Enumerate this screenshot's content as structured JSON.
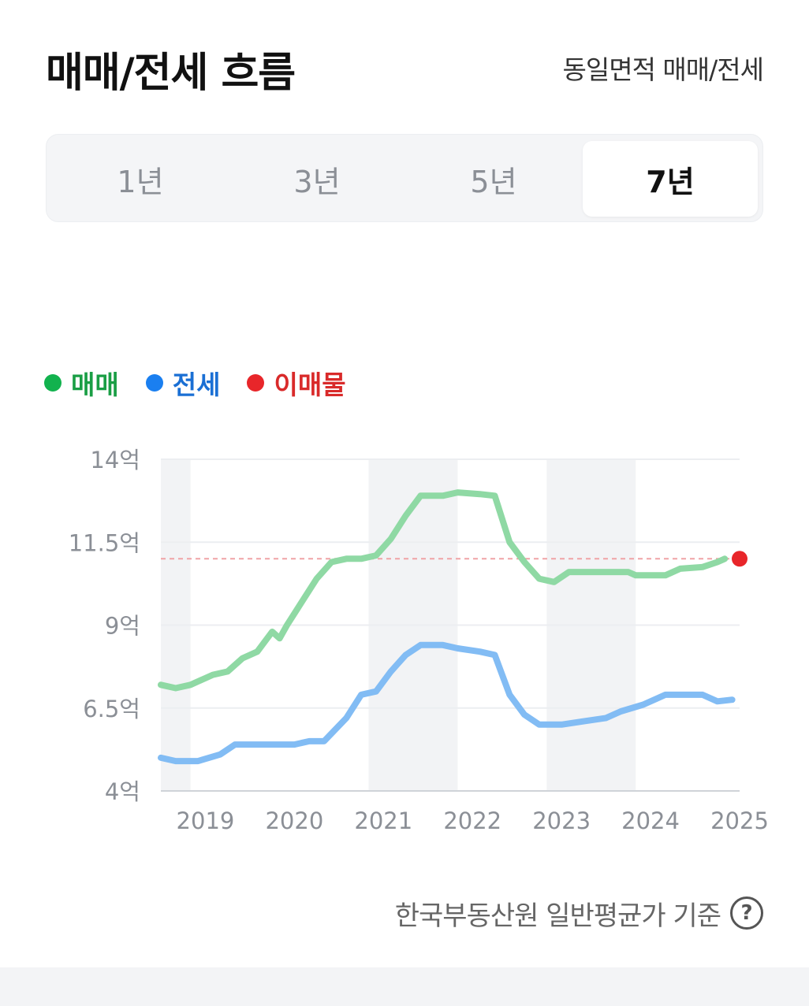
{
  "header": {
    "title": "매매/전세 흐름",
    "area_filter": "동일면적 매매/전세"
  },
  "tabs": [
    {
      "label": "1년",
      "active": false
    },
    {
      "label": "3년",
      "active": false
    },
    {
      "label": "5년",
      "active": false
    },
    {
      "label": "7년",
      "active": true
    }
  ],
  "legend": [
    {
      "label": "매매",
      "color": "#12b24e",
      "text_color": "#1a9e45"
    },
    {
      "label": "전세",
      "color": "#1a7ff0",
      "text_color": "#1a6fd4"
    },
    {
      "label": "이매물",
      "color": "#e8262a",
      "text_color": "#d92a2a"
    }
  ],
  "footer": {
    "source": "한국부동산원 일반평균가 기준",
    "help_icon": "question-circle-icon"
  },
  "chart_data": {
    "type": "line",
    "x_start": "2018-09",
    "x_end": "2025-03",
    "ylim": [
      4,
      14
    ],
    "y_ticks": [
      4,
      6.5,
      9,
      11.5,
      14
    ],
    "y_tick_labels": [
      "4억",
      "6.5억",
      "9억",
      "11.5억",
      "14억"
    ],
    "x_ticks": [
      "2019",
      "2020",
      "2021",
      "2022",
      "2023",
      "2024",
      "2025"
    ],
    "band_years": [
      2018,
      2021,
      2023
    ],
    "grid": true,
    "series": [
      {
        "name": "매매",
        "color": "#8fd9a4",
        "points": [
          [
            "2018-09",
            7.2
          ],
          [
            "2018-11",
            7.1
          ],
          [
            "2019-01",
            7.2
          ],
          [
            "2019-04",
            7.5
          ],
          [
            "2019-06",
            7.6
          ],
          [
            "2019-08",
            8.0
          ],
          [
            "2019-10",
            8.2
          ],
          [
            "2019-12",
            8.8
          ],
          [
            "2020-01",
            8.6
          ],
          [
            "2020-02",
            9.0
          ],
          [
            "2020-04",
            9.7
          ],
          [
            "2020-06",
            10.4
          ],
          [
            "2020-08",
            10.9
          ],
          [
            "2020-10",
            11.0
          ],
          [
            "2020-12",
            11.0
          ],
          [
            "2021-02",
            11.1
          ],
          [
            "2021-04",
            11.6
          ],
          [
            "2021-06",
            12.3
          ],
          [
            "2021-08",
            12.9
          ],
          [
            "2021-11",
            12.9
          ],
          [
            "2022-01",
            13.0
          ],
          [
            "2022-04",
            12.95
          ],
          [
            "2022-06",
            12.9
          ],
          [
            "2022-08",
            11.5
          ],
          [
            "2022-10",
            10.9
          ],
          [
            "2022-12",
            10.4
          ],
          [
            "2023-02",
            10.3
          ],
          [
            "2023-04",
            10.6
          ],
          [
            "2023-08",
            10.6
          ],
          [
            "2023-12",
            10.6
          ],
          [
            "2024-01",
            10.5
          ],
          [
            "2024-05",
            10.5
          ],
          [
            "2024-07",
            10.7
          ],
          [
            "2024-10",
            10.75
          ],
          [
            "2024-12",
            10.9
          ],
          [
            "2025-01",
            11.0
          ]
        ]
      },
      {
        "name": "전세",
        "color": "#82bcf4",
        "points": [
          [
            "2018-09",
            5.0
          ],
          [
            "2018-11",
            4.9
          ],
          [
            "2019-02",
            4.9
          ],
          [
            "2019-05",
            5.1
          ],
          [
            "2019-07",
            5.4
          ],
          [
            "2019-10",
            5.4
          ],
          [
            "2020-03",
            5.4
          ],
          [
            "2020-05",
            5.5
          ],
          [
            "2020-07",
            5.5
          ],
          [
            "2020-10",
            6.2
          ],
          [
            "2020-12",
            6.9
          ],
          [
            "2021-02",
            7.0
          ],
          [
            "2021-04",
            7.6
          ],
          [
            "2021-06",
            8.1
          ],
          [
            "2021-08",
            8.4
          ],
          [
            "2021-11",
            8.4
          ],
          [
            "2022-01",
            8.3
          ],
          [
            "2022-04",
            8.2
          ],
          [
            "2022-06",
            8.1
          ],
          [
            "2022-08",
            6.9
          ],
          [
            "2022-10",
            6.3
          ],
          [
            "2022-12",
            6.0
          ],
          [
            "2023-03",
            6.0
          ],
          [
            "2023-06",
            6.1
          ],
          [
            "2023-09",
            6.2
          ],
          [
            "2023-11",
            6.4
          ],
          [
            "2024-02",
            6.6
          ],
          [
            "2024-05",
            6.9
          ],
          [
            "2024-08",
            6.9
          ],
          [
            "2024-10",
            6.9
          ],
          [
            "2024-12",
            6.7
          ],
          [
            "2025-02",
            6.75
          ]
        ]
      }
    ],
    "listing_price": {
      "name": "이매물",
      "date": "2025-03",
      "value": 11.0,
      "color": "#e8262a",
      "line_color": "#f0a3a6"
    }
  }
}
